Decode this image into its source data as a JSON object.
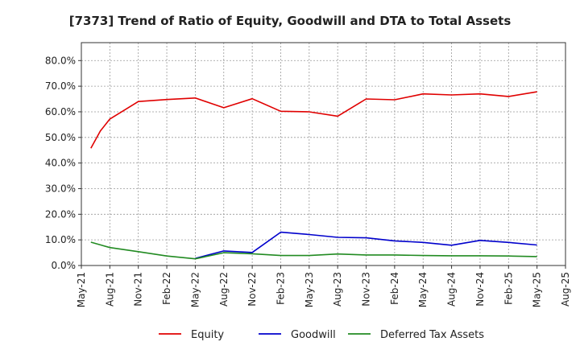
{
  "chart_data": {
    "type": "line",
    "title": "[7373]  Trend of Ratio of Equity, Goodwill and DTA to Total Assets",
    "xlabel": "",
    "ylabel": "",
    "x_ticks": [
      "May-21",
      "Aug-21",
      "Nov-21",
      "Feb-22",
      "May-22",
      "Aug-22",
      "Nov-22",
      "Feb-23",
      "May-23",
      "Aug-23",
      "Nov-23",
      "Feb-24",
      "May-24",
      "Aug-24",
      "Nov-24",
      "Feb-25",
      "May-25",
      "Aug-25"
    ],
    "y_ticks": [
      "0.0%",
      "10.0%",
      "20.0%",
      "30.0%",
      "40.0%",
      "50.0%",
      "60.0%",
      "70.0%",
      "80.0%"
    ],
    "ylim": [
      0,
      87
    ],
    "xlim": [
      0,
      51
    ],
    "grid": true,
    "legend_position": "bottom",
    "series": [
      {
        "name": "Equity",
        "color": "#e00000",
        "points": [
          [
            1,
            45.8
          ],
          [
            2,
            52.5
          ],
          [
            3,
            57.2
          ],
          [
            6,
            64.0
          ],
          [
            9,
            64.8
          ],
          [
            12,
            65.4
          ],
          [
            15,
            61.6
          ],
          [
            18,
            65.1
          ],
          [
            21,
            60.2
          ],
          [
            24,
            60.0
          ],
          [
            27,
            58.3
          ],
          [
            30,
            65.0
          ],
          [
            33,
            64.7
          ],
          [
            36,
            67.0
          ],
          [
            39,
            66.6
          ],
          [
            42,
            67.0
          ],
          [
            45,
            66.0
          ],
          [
            48,
            67.8
          ]
        ]
      },
      {
        "name": "Goodwill",
        "color": "#0000cc",
        "points": [
          [
            12,
            2.8
          ],
          [
            15,
            5.7
          ],
          [
            18,
            5.1
          ],
          [
            21,
            13.0
          ],
          [
            24,
            12.1
          ],
          [
            27,
            11.0
          ],
          [
            30,
            10.8
          ],
          [
            33,
            9.6
          ],
          [
            36,
            9.0
          ],
          [
            39,
            7.9
          ],
          [
            42,
            9.8
          ],
          [
            45,
            9.0
          ],
          [
            48,
            8.0
          ]
        ]
      },
      {
        "name": "Deferred Tax Assets",
        "color": "#228B22",
        "points": [
          [
            1,
            9.1
          ],
          [
            3,
            7.0
          ],
          [
            6,
            5.4
          ],
          [
            9,
            3.7
          ],
          [
            12,
            2.6
          ],
          [
            15,
            5.0
          ],
          [
            18,
            4.6
          ],
          [
            21,
            3.9
          ],
          [
            24,
            3.9
          ],
          [
            27,
            4.5
          ],
          [
            30,
            4.1
          ],
          [
            33,
            4.1
          ],
          [
            36,
            3.9
          ],
          [
            39,
            3.8
          ],
          [
            42,
            3.8
          ],
          [
            45,
            3.7
          ],
          [
            48,
            3.5
          ]
        ]
      }
    ]
  }
}
